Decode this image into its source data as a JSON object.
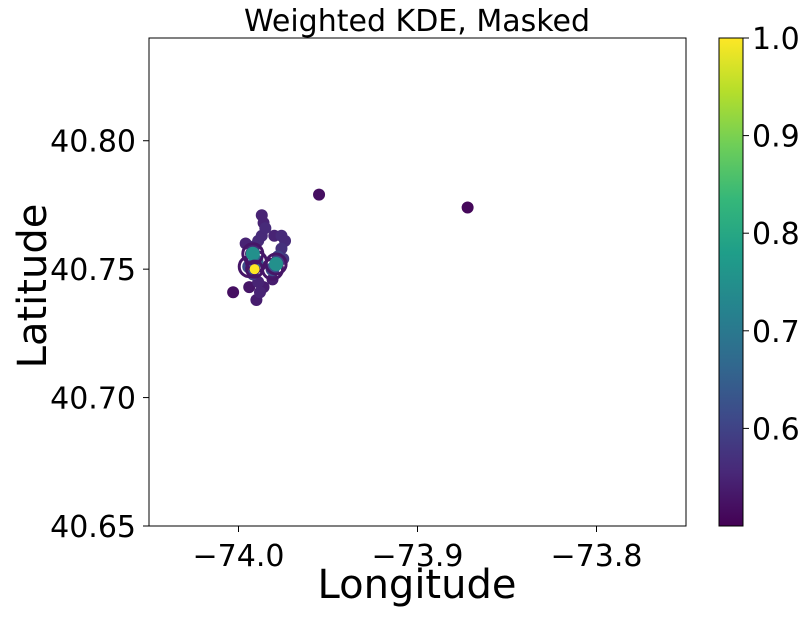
{
  "chart_data": {
    "type": "heatmap",
    "title": "Weighted KDE, Masked",
    "xlabel": "Longitude",
    "ylabel": "Latitude",
    "xlim": [
      -74.05,
      -73.75
    ],
    "ylim": [
      40.65,
      40.84
    ],
    "xticks": [
      -74.0,
      -73.9,
      -73.8
    ],
    "xtick_labels": [
      "−74.0",
      "−73.9",
      "−73.8"
    ],
    "yticks": [
      40.65,
      40.7,
      40.75,
      40.8
    ],
    "ytick_labels": [
      "40.65",
      "40.70",
      "40.75",
      "40.80"
    ],
    "colorbar": {
      "colormap": "viridis",
      "range": [
        0.5,
        1.0
      ],
      "ticks": [
        0.6,
        0.7,
        0.8,
        0.9,
        1.0
      ],
      "tick_labels": [
        "0.6",
        "0.7",
        "0.8",
        "0.9",
        "1.0"
      ]
    },
    "grid": false,
    "points": [
      {
        "x": -74.003,
        "y": 40.741,
        "v": 0.52
      },
      {
        "x": -73.996,
        "y": 40.76,
        "v": 0.55
      },
      {
        "x": -73.993,
        "y": 40.756,
        "v": 0.55
      },
      {
        "x": -73.991,
        "y": 40.759,
        "v": 0.56
      },
      {
        "x": -73.989,
        "y": 40.761,
        "v": 0.56
      },
      {
        "x": -73.987,
        "y": 40.763,
        "v": 0.56
      },
      {
        "x": -73.985,
        "y": 40.766,
        "v": 0.56
      },
      {
        "x": -73.987,
        "y": 40.771,
        "v": 0.55
      },
      {
        "x": -73.986,
        "y": 40.768,
        "v": 0.55
      },
      {
        "x": -73.994,
        "y": 40.751,
        "v": 0.62
      },
      {
        "x": -73.991,
        "y": 40.75,
        "v": 1.0
      },
      {
        "x": -73.992,
        "y": 40.748,
        "v": 0.6
      },
      {
        "x": -73.99,
        "y": 40.753,
        "v": 0.65
      },
      {
        "x": -73.992,
        "y": 40.756,
        "v": 0.75
      },
      {
        "x": -73.989,
        "y": 40.745,
        "v": 0.55
      },
      {
        "x": -73.988,
        "y": 40.741,
        "v": 0.55
      },
      {
        "x": -73.99,
        "y": 40.738,
        "v": 0.54
      },
      {
        "x": -73.986,
        "y": 40.743,
        "v": 0.54
      },
      {
        "x": -73.994,
        "y": 40.743,
        "v": 0.53
      },
      {
        "x": -73.98,
        "y": 40.763,
        "v": 0.55
      },
      {
        "x": -73.976,
        "y": 40.763,
        "v": 0.56
      },
      {
        "x": -73.974,
        "y": 40.761,
        "v": 0.56
      },
      {
        "x": -73.976,
        "y": 40.758,
        "v": 0.57
      },
      {
        "x": -73.978,
        "y": 40.755,
        "v": 0.6
      },
      {
        "x": -73.979,
        "y": 40.752,
        "v": 0.75
      },
      {
        "x": -73.981,
        "y": 40.75,
        "v": 0.62
      },
      {
        "x": -73.975,
        "y": 40.754,
        "v": 0.58
      },
      {
        "x": -73.981,
        "y": 40.746,
        "v": 0.54
      },
      {
        "x": -73.955,
        "y": 40.779,
        "v": 0.52
      },
      {
        "x": -73.872,
        "y": 40.774,
        "v": 0.51
      }
    ]
  }
}
